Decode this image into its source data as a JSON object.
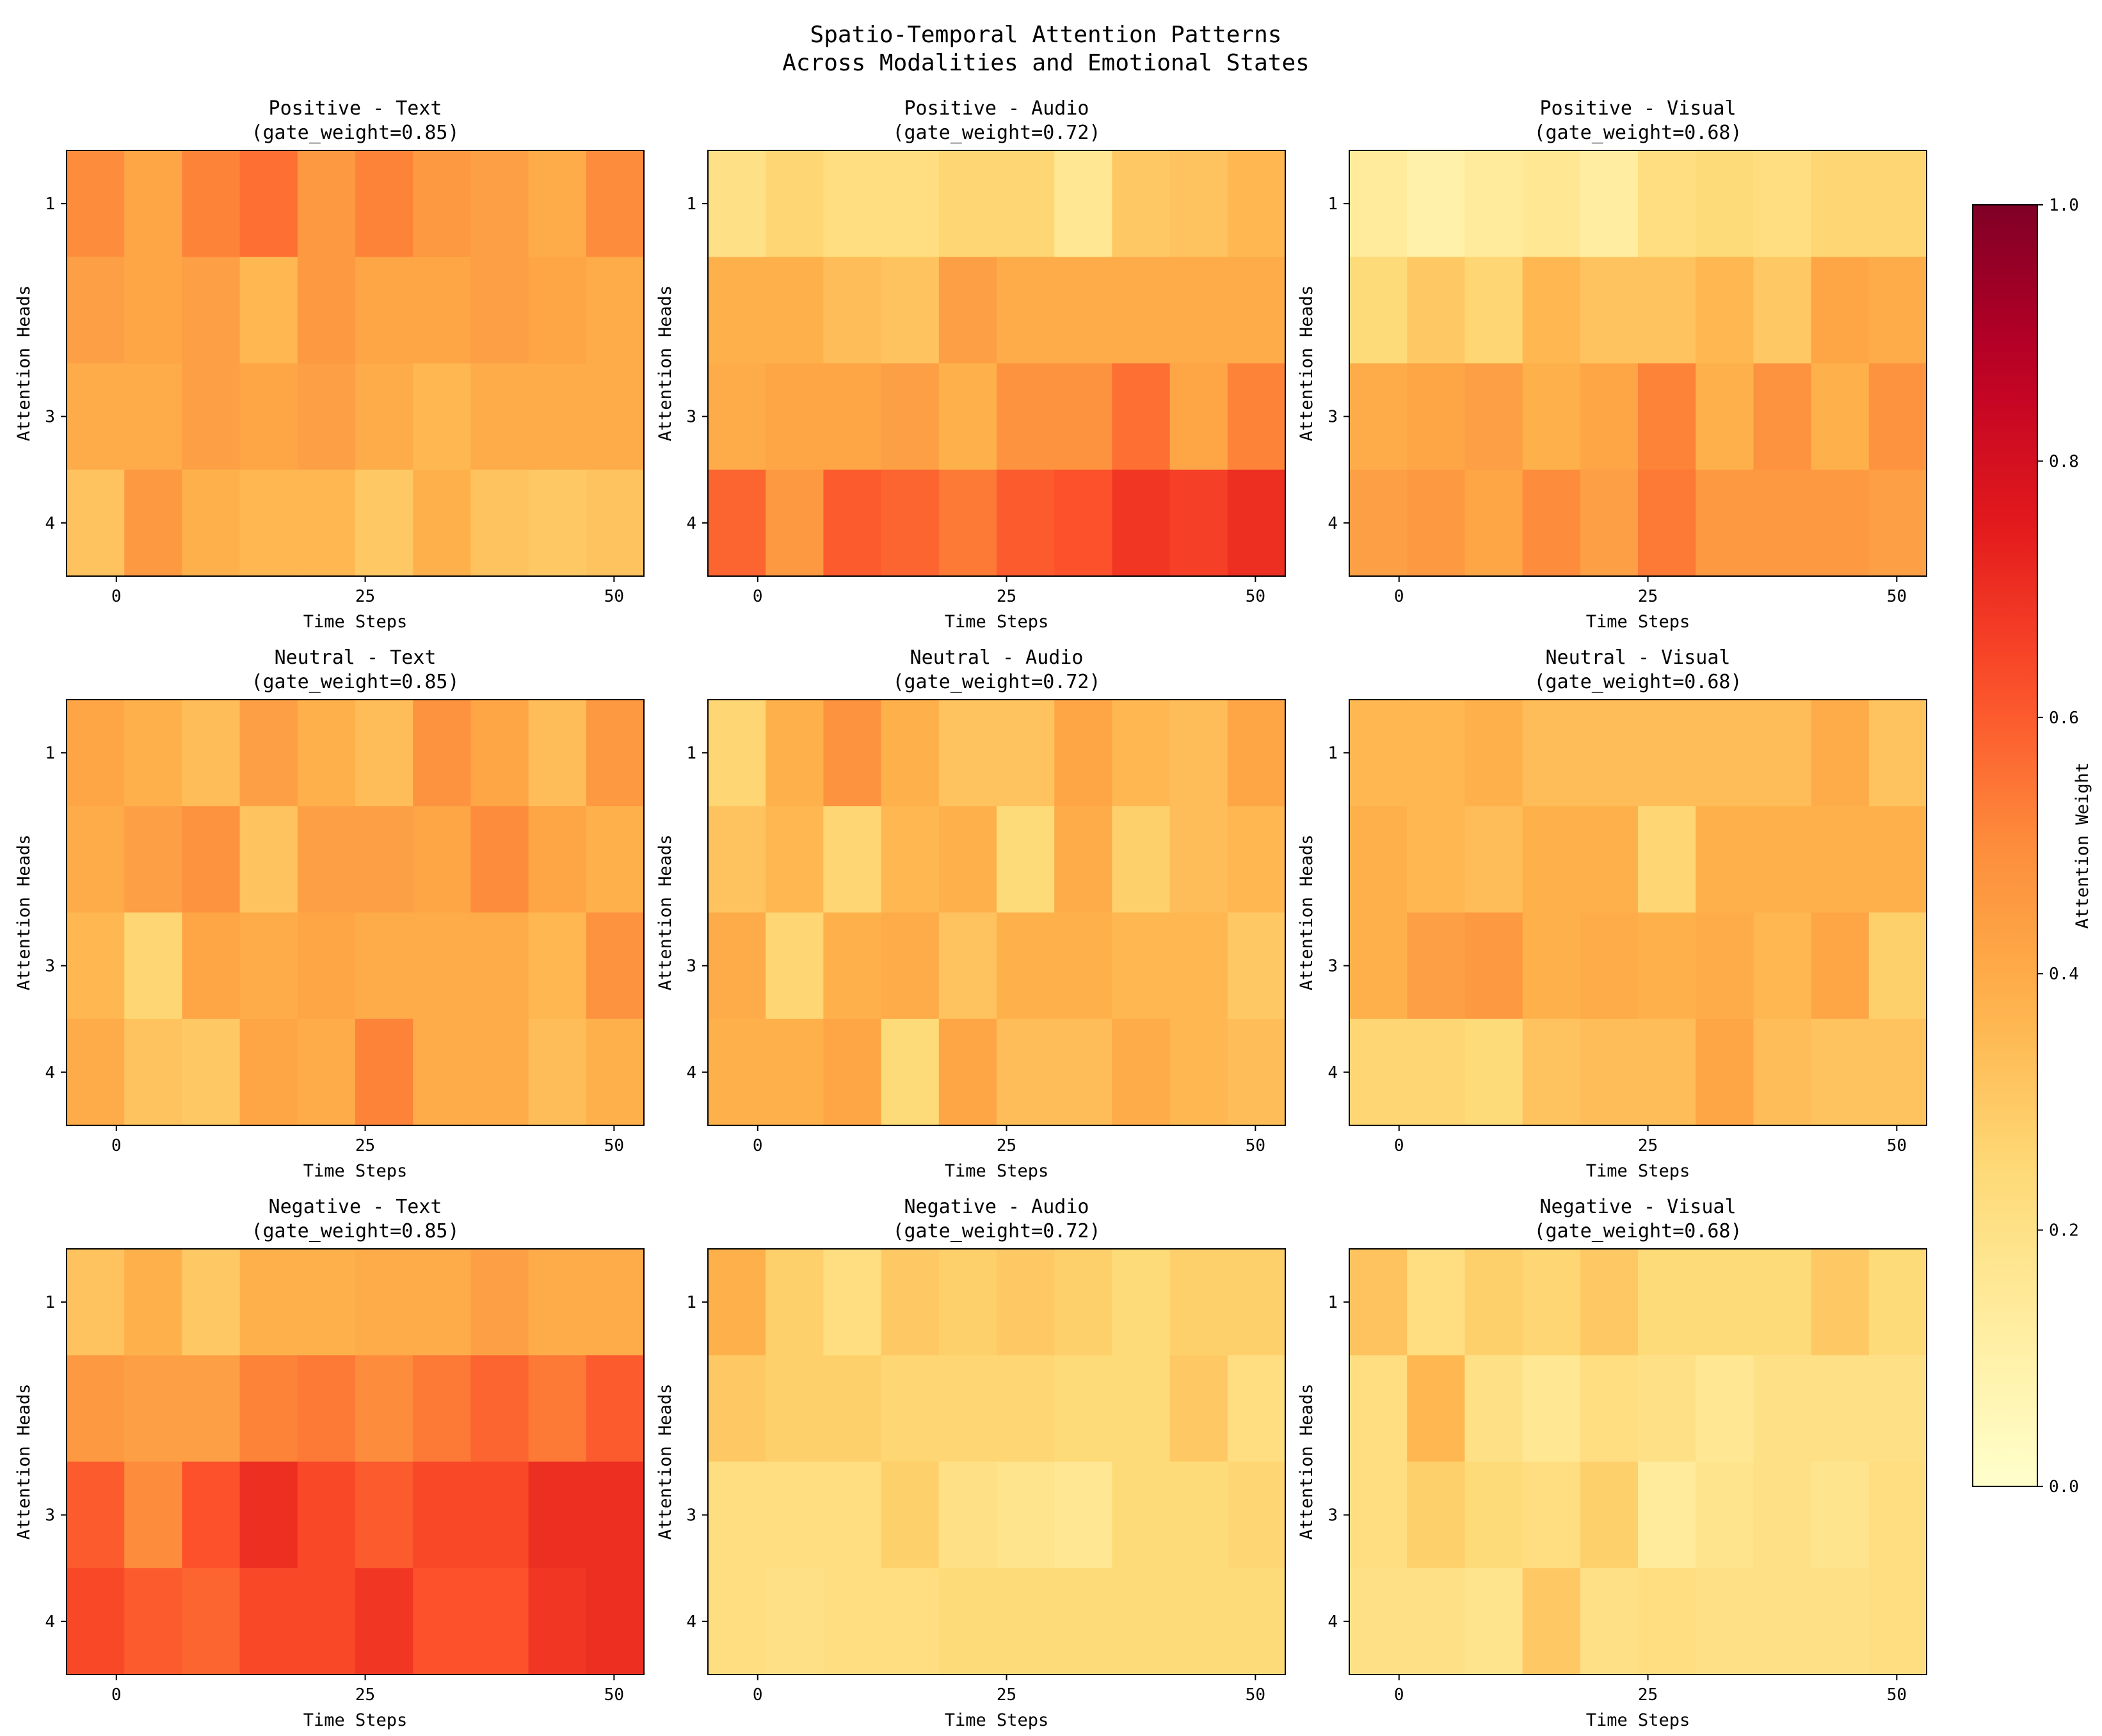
{
  "chart_data": {
    "type": "heatmap",
    "title_lines": [
      "Spatio-Temporal Attention Patterns",
      "Across Modalities and Emotional States"
    ],
    "xlabel": "Time Steps",
    "ylabel": "Attention Heads",
    "x_tick_labels": [
      "0",
      "25",
      "50"
    ],
    "x_tick_values": [
      0,
      25,
      50
    ],
    "y_tick_labels": [
      "1",
      "3",
      "4"
    ],
    "y_tick_rows": [
      0,
      2,
      3
    ],
    "x_range": [
      -5,
      53
    ],
    "colormap": "YlOrRd",
    "vmin": 0.0,
    "vmax": 1.0,
    "colorbar": {
      "label": "Attention Weight",
      "ticks": [
        0.0,
        0.2,
        0.4,
        0.6,
        0.8,
        1.0
      ],
      "tick_labels": [
        "0.0",
        "0.2",
        "0.4",
        "0.6",
        "0.8",
        "1.0"
      ]
    },
    "panels": [
      {
        "title": "Positive - Text",
        "subtitle": "(gate_weight=0.85)",
        "values": [
          [
            0.5,
            0.42,
            0.52,
            0.56,
            0.46,
            0.52,
            0.46,
            0.44,
            0.4,
            0.5
          ],
          [
            0.44,
            0.42,
            0.44,
            0.36,
            0.46,
            0.42,
            0.42,
            0.44,
            0.42,
            0.4
          ],
          [
            0.4,
            0.4,
            0.44,
            0.42,
            0.44,
            0.4,
            0.36,
            0.4,
            0.4,
            0.4
          ],
          [
            0.32,
            0.46,
            0.38,
            0.36,
            0.36,
            0.3,
            0.38,
            0.32,
            0.3,
            0.32
          ]
        ]
      },
      {
        "title": "Positive - Audio",
        "subtitle": "(gate_weight=0.72)",
        "values": [
          [
            0.2,
            0.26,
            0.22,
            0.22,
            0.26,
            0.26,
            0.16,
            0.3,
            0.32,
            0.36
          ],
          [
            0.38,
            0.38,
            0.34,
            0.32,
            0.44,
            0.4,
            0.4,
            0.4,
            0.4,
            0.4
          ],
          [
            0.4,
            0.42,
            0.42,
            0.44,
            0.38,
            0.48,
            0.48,
            0.56,
            0.42,
            0.52
          ],
          [
            0.58,
            0.46,
            0.6,
            0.58,
            0.54,
            0.6,
            0.62,
            0.68,
            0.66,
            0.7
          ]
        ]
      },
      {
        "title": "Positive - Visual",
        "subtitle": "(gate_weight=0.68)",
        "values": [
          [
            0.14,
            0.1,
            0.14,
            0.16,
            0.12,
            0.22,
            0.24,
            0.22,
            0.26,
            0.26
          ],
          [
            0.24,
            0.3,
            0.26,
            0.36,
            0.32,
            0.32,
            0.36,
            0.3,
            0.42,
            0.4
          ],
          [
            0.4,
            0.42,
            0.44,
            0.38,
            0.42,
            0.52,
            0.38,
            0.48,
            0.38,
            0.48
          ],
          [
            0.44,
            0.46,
            0.42,
            0.5,
            0.44,
            0.54,
            0.46,
            0.46,
            0.46,
            0.44
          ]
        ]
      },
      {
        "title": "Neutral - Text",
        "subtitle": "(gate_weight=0.85)",
        "values": [
          [
            0.42,
            0.38,
            0.34,
            0.44,
            0.38,
            0.34,
            0.48,
            0.42,
            0.34,
            0.46
          ],
          [
            0.4,
            0.44,
            0.48,
            0.32,
            0.44,
            0.44,
            0.42,
            0.5,
            0.42,
            0.38
          ],
          [
            0.36,
            0.26,
            0.42,
            0.4,
            0.42,
            0.4,
            0.4,
            0.4,
            0.36,
            0.48
          ],
          [
            0.4,
            0.32,
            0.3,
            0.42,
            0.4,
            0.52,
            0.4,
            0.4,
            0.34,
            0.38
          ]
        ]
      },
      {
        "title": "Neutral - Audio",
        "subtitle": "(gate_weight=0.72)",
        "values": [
          [
            0.26,
            0.38,
            0.48,
            0.38,
            0.32,
            0.32,
            0.42,
            0.36,
            0.34,
            0.42
          ],
          [
            0.32,
            0.36,
            0.26,
            0.36,
            0.38,
            0.24,
            0.4,
            0.28,
            0.34,
            0.36
          ],
          [
            0.4,
            0.26,
            0.38,
            0.4,
            0.32,
            0.38,
            0.38,
            0.36,
            0.36,
            0.3
          ],
          [
            0.38,
            0.38,
            0.42,
            0.24,
            0.42,
            0.34,
            0.34,
            0.4,
            0.36,
            0.34
          ]
        ]
      },
      {
        "title": "Neutral - Visual",
        "subtitle": "(gate_weight=0.68)",
        "values": [
          [
            0.36,
            0.36,
            0.38,
            0.34,
            0.34,
            0.34,
            0.34,
            0.34,
            0.4,
            0.32
          ],
          [
            0.38,
            0.36,
            0.34,
            0.38,
            0.38,
            0.26,
            0.38,
            0.38,
            0.38,
            0.38
          ],
          [
            0.38,
            0.44,
            0.46,
            0.38,
            0.4,
            0.38,
            0.4,
            0.36,
            0.42,
            0.28
          ],
          [
            0.26,
            0.26,
            0.24,
            0.32,
            0.34,
            0.34,
            0.42,
            0.34,
            0.32,
            0.32
          ]
        ]
      },
      {
        "title": "Negative - Text",
        "subtitle": "(gate_weight=0.85)",
        "values": [
          [
            0.32,
            0.38,
            0.3,
            0.38,
            0.38,
            0.4,
            0.4,
            0.44,
            0.4,
            0.4
          ],
          [
            0.46,
            0.44,
            0.44,
            0.52,
            0.54,
            0.5,
            0.54,
            0.58,
            0.54,
            0.6
          ],
          [
            0.6,
            0.5,
            0.62,
            0.7,
            0.64,
            0.6,
            0.64,
            0.64,
            0.7,
            0.7
          ],
          [
            0.64,
            0.6,
            0.58,
            0.64,
            0.64,
            0.68,
            0.62,
            0.62,
            0.68,
            0.7
          ]
        ]
      },
      {
        "title": "Negative - Audio",
        "subtitle": "(gate_weight=0.72)",
        "values": [
          [
            0.38,
            0.28,
            0.22,
            0.3,
            0.28,
            0.3,
            0.28,
            0.24,
            0.28,
            0.28
          ],
          [
            0.3,
            0.28,
            0.28,
            0.26,
            0.26,
            0.26,
            0.24,
            0.24,
            0.3,
            0.22
          ],
          [
            0.22,
            0.22,
            0.22,
            0.28,
            0.2,
            0.18,
            0.16,
            0.24,
            0.24,
            0.26
          ],
          [
            0.22,
            0.2,
            0.22,
            0.22,
            0.24,
            0.24,
            0.24,
            0.24,
            0.24,
            0.24
          ]
        ]
      },
      {
        "title": "Negative - Visual",
        "subtitle": "(gate_weight=0.68)",
        "values": [
          [
            0.32,
            0.22,
            0.28,
            0.26,
            0.3,
            0.24,
            0.24,
            0.24,
            0.3,
            0.24
          ],
          [
            0.22,
            0.36,
            0.2,
            0.16,
            0.22,
            0.2,
            0.16,
            0.2,
            0.2,
            0.2
          ],
          [
            0.22,
            0.28,
            0.24,
            0.22,
            0.28,
            0.14,
            0.18,
            0.2,
            0.18,
            0.22
          ],
          [
            0.2,
            0.2,
            0.18,
            0.3,
            0.2,
            0.22,
            0.2,
            0.2,
            0.2,
            0.22
          ]
        ]
      }
    ]
  }
}
